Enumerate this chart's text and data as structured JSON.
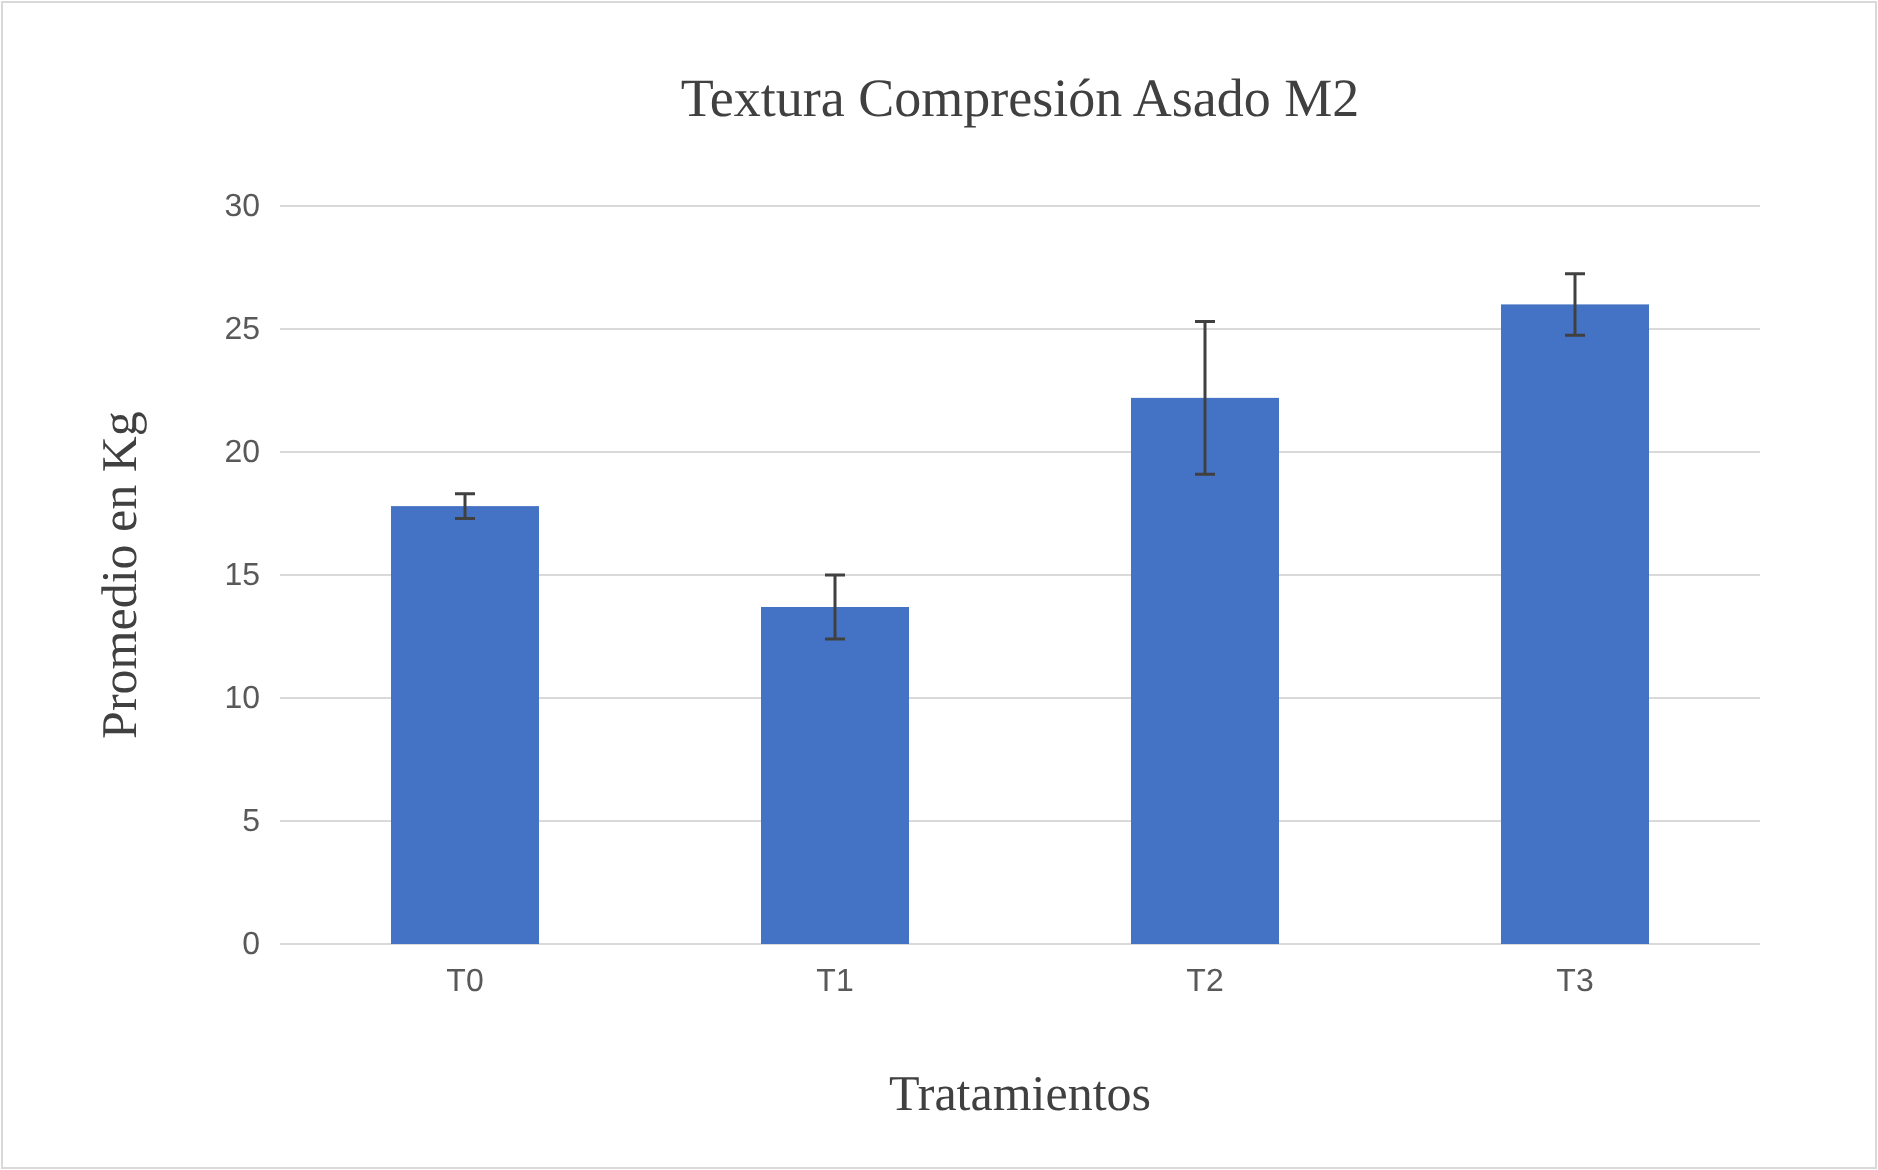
{
  "chart_data": {
    "type": "bar",
    "title": "Textura Compresión Asado M2",
    "xlabel": "Tratamientos",
    "ylabel": "Promedio en Kg",
    "categories": [
      "T0",
      "T1",
      "T2",
      "T3"
    ],
    "values": [
      17.8,
      13.7,
      22.2,
      26.0
    ],
    "errors": [
      0.5,
      1.3,
      3.1,
      1.25
    ],
    "color": "#4472c4",
    "ylim": [
      0,
      30
    ],
    "yticks": [
      0,
      5,
      10,
      15,
      20,
      25,
      30
    ],
    "grid": "y"
  }
}
